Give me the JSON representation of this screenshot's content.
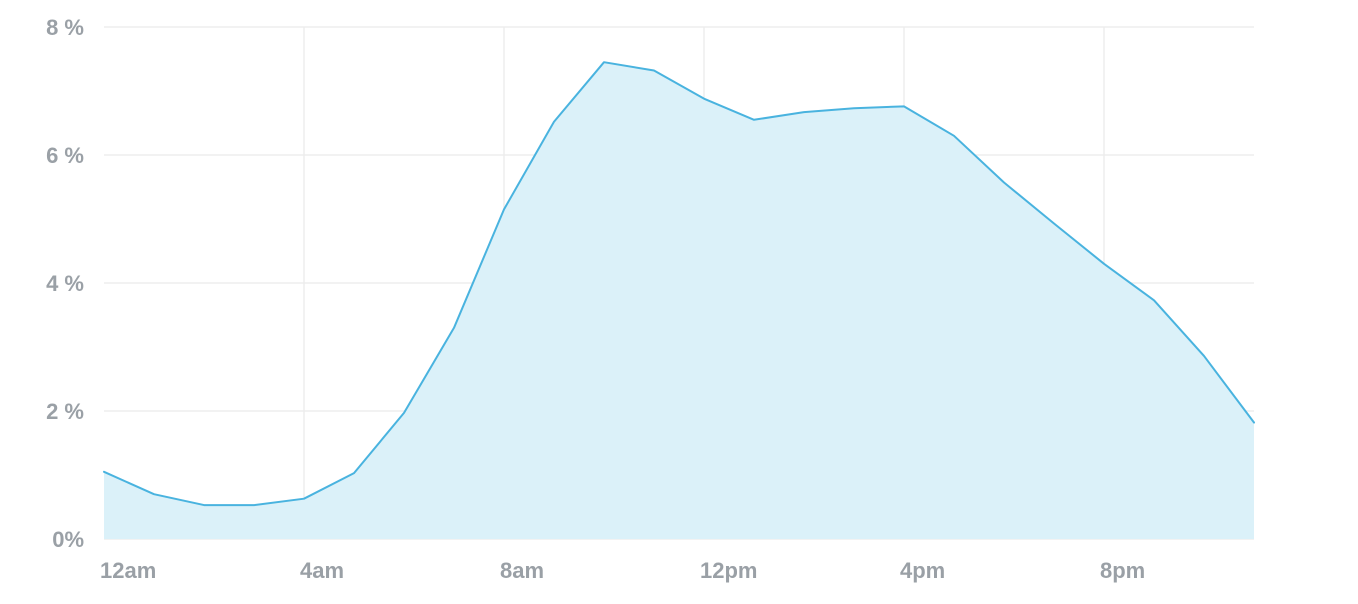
{
  "chart_data": {
    "type": "area",
    "title": "",
    "xlabel": "",
    "ylabel": "",
    "x_tick_labels": [
      "12am",
      "4am",
      "8am",
      "12pm",
      "4pm",
      "8pm"
    ],
    "x_tick_positions": [
      0,
      4,
      8,
      12,
      16,
      20
    ],
    "y_tick_labels": [
      "0%",
      "2 %",
      "4 %",
      "6 %",
      "8 %"
    ],
    "y_tick_values": [
      0,
      2,
      4,
      6,
      8
    ],
    "xlim": [
      0,
      23
    ],
    "ylim": [
      0,
      8
    ],
    "grid": true,
    "legend": "none",
    "colors": {
      "line": "#49b3df",
      "fill": "#dbf1f9",
      "grid": "#ededed",
      "text": "#9aa0a6"
    },
    "series": [
      {
        "x": [
          0,
          1,
          2,
          3,
          4,
          5,
          6,
          7,
          8,
          9,
          10,
          11,
          12,
          13,
          14,
          15,
          16,
          17,
          18,
          19,
          20,
          21,
          22,
          23
        ],
        "values": [
          1.05,
          0.7,
          0.53,
          0.53,
          0.63,
          1.03,
          1.97,
          3.3,
          5.15,
          6.52,
          7.45,
          7.32,
          6.88,
          6.55,
          6.67,
          6.73,
          6.76,
          6.3,
          5.57,
          4.93,
          4.3,
          3.73,
          2.86,
          1.82
        ]
      }
    ]
  }
}
